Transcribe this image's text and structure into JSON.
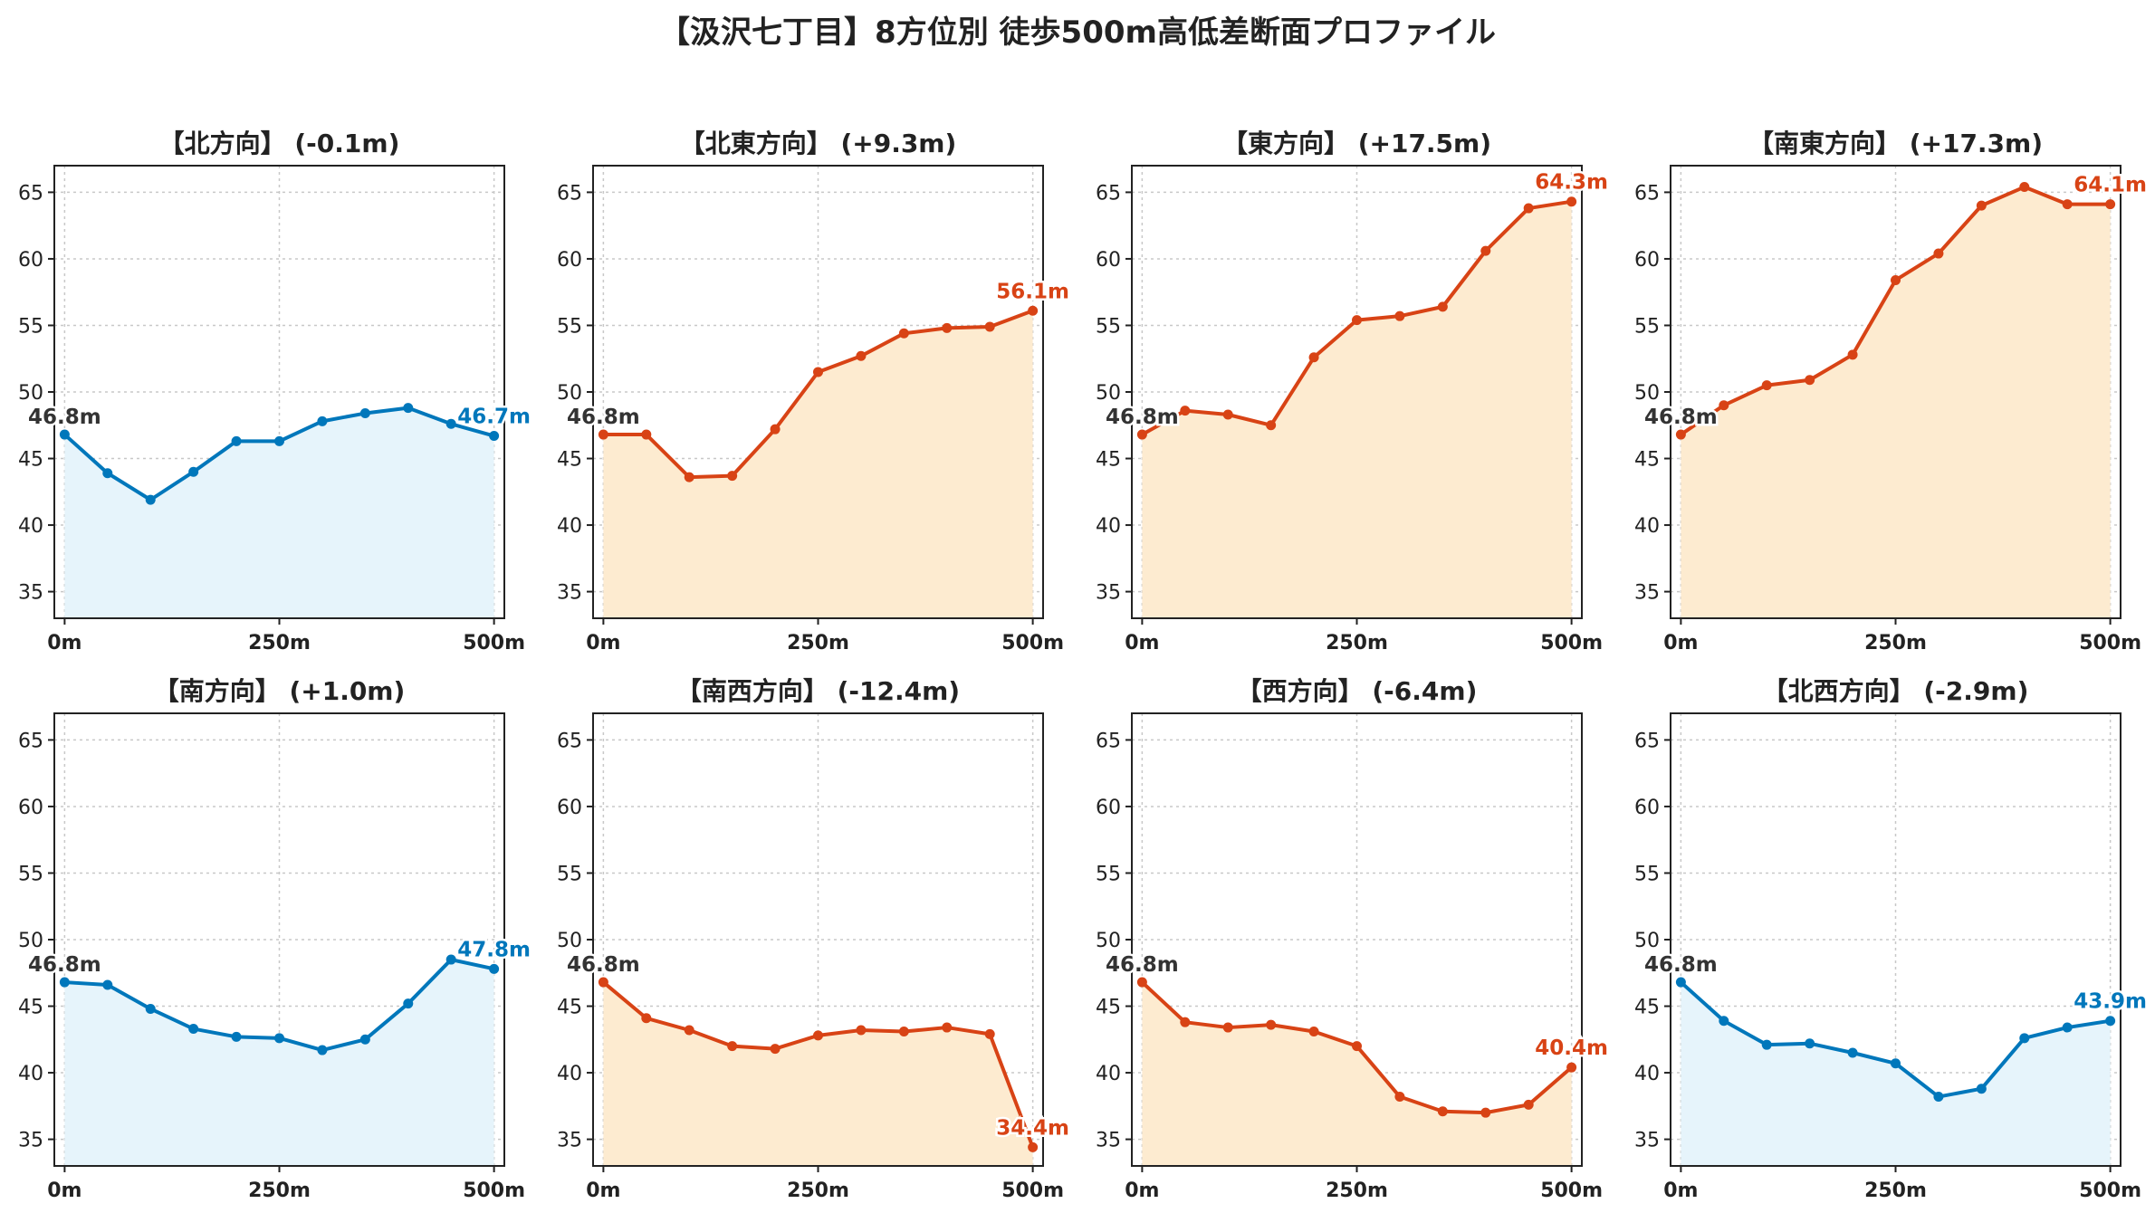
{
  "title": "【汲沢七丁目】8方位別 徒歩500m高低差断面プロファイル",
  "colors": {
    "up_line": "#d84315",
    "up_fill": "#fdebd0",
    "down_line": "#0077bb",
    "down_fill": "#e6f4fb",
    "start_label": "#333333"
  },
  "chart_data": [
    {
      "type": "area",
      "title": "【北方向】 (-0.1m)",
      "trend": "down",
      "x": [
        0,
        50,
        100,
        150,
        200,
        250,
        300,
        350,
        400,
        450,
        500
      ],
      "values": [
        46.8,
        43.9,
        41.9,
        44.0,
        46.3,
        46.3,
        47.8,
        48.4,
        48.8,
        47.6,
        46.7
      ],
      "start_label": "46.8m",
      "end_label": "46.7m",
      "xticks": [
        "0m",
        "250m",
        "500m"
      ],
      "yticks": [
        35,
        40,
        45,
        50,
        55,
        60,
        65
      ],
      "ylim": [
        33,
        67
      ],
      "xlim": [
        -12,
        512
      ],
      "grid": true
    },
    {
      "type": "area",
      "title": "【北東方向】 (+9.3m)",
      "trend": "up",
      "x": [
        0,
        50,
        100,
        150,
        200,
        250,
        300,
        350,
        400,
        450,
        500
      ],
      "values": [
        46.8,
        46.8,
        43.6,
        43.7,
        47.2,
        51.5,
        52.7,
        54.4,
        54.8,
        54.9,
        56.1
      ],
      "start_label": "46.8m",
      "end_label": "56.1m",
      "xticks": [
        "0m",
        "250m",
        "500m"
      ],
      "yticks": [
        35,
        40,
        45,
        50,
        55,
        60,
        65
      ],
      "ylim": [
        33,
        67
      ],
      "xlim": [
        -12,
        512
      ],
      "grid": true
    },
    {
      "type": "area",
      "title": "【東方向】 (+17.5m)",
      "trend": "up",
      "x": [
        0,
        50,
        100,
        150,
        200,
        250,
        300,
        350,
        400,
        450,
        500
      ],
      "values": [
        46.8,
        48.6,
        48.3,
        47.5,
        52.6,
        55.4,
        55.7,
        56.4,
        60.6,
        63.8,
        64.3
      ],
      "start_label": "46.8m",
      "end_label": "64.3m",
      "xticks": [
        "0m",
        "250m",
        "500m"
      ],
      "yticks": [
        35,
        40,
        45,
        50,
        55,
        60,
        65
      ],
      "ylim": [
        33,
        67
      ],
      "xlim": [
        -12,
        512
      ],
      "grid": true
    },
    {
      "type": "area",
      "title": "【南東方向】 (+17.3m)",
      "trend": "up",
      "x": [
        0,
        50,
        100,
        150,
        200,
        250,
        300,
        350,
        400,
        450,
        500
      ],
      "values": [
        46.8,
        49.0,
        50.5,
        50.9,
        52.8,
        58.4,
        60.4,
        64.0,
        65.4,
        64.1,
        64.1
      ],
      "start_label": "46.8m",
      "end_label": "64.1m",
      "xticks": [
        "0m",
        "250m",
        "500m"
      ],
      "yticks": [
        35,
        40,
        45,
        50,
        55,
        60,
        65
      ],
      "ylim": [
        33,
        67
      ],
      "xlim": [
        -12,
        512
      ],
      "grid": true
    },
    {
      "type": "area",
      "title": "【南方向】 (+1.0m)",
      "trend": "down",
      "x": [
        0,
        50,
        100,
        150,
        200,
        250,
        300,
        350,
        400,
        450,
        500
      ],
      "values": [
        46.8,
        46.6,
        44.8,
        43.3,
        42.7,
        42.6,
        41.7,
        42.5,
        45.2,
        48.5,
        47.8
      ],
      "start_label": "46.8m",
      "end_label": "47.8m",
      "xticks": [
        "0m",
        "250m",
        "500m"
      ],
      "yticks": [
        35,
        40,
        45,
        50,
        55,
        60,
        65
      ],
      "ylim": [
        33,
        67
      ],
      "xlim": [
        -12,
        512
      ],
      "grid": true
    },
    {
      "type": "area",
      "title": "【南西方向】 (-12.4m)",
      "trend": "up",
      "x": [
        0,
        50,
        100,
        150,
        200,
        250,
        300,
        350,
        400,
        450,
        500
      ],
      "values": [
        46.8,
        44.1,
        43.2,
        42.0,
        41.8,
        42.8,
        43.2,
        43.1,
        43.4,
        42.9,
        34.4
      ],
      "start_label": "46.8m",
      "end_label": "34.4m",
      "xticks": [
        "0m",
        "250m",
        "500m"
      ],
      "yticks": [
        35,
        40,
        45,
        50,
        55,
        60,
        65
      ],
      "ylim": [
        33,
        67
      ],
      "xlim": [
        -12,
        512
      ],
      "grid": true
    },
    {
      "type": "area",
      "title": "【西方向】 (-6.4m)",
      "trend": "up",
      "x": [
        0,
        50,
        100,
        150,
        200,
        250,
        300,
        350,
        400,
        450,
        500
      ],
      "values": [
        46.8,
        43.8,
        43.4,
        43.6,
        43.1,
        42.0,
        38.2,
        37.1,
        37.0,
        37.6,
        40.4
      ],
      "start_label": "46.8m",
      "end_label": "40.4m",
      "xticks": [
        "0m",
        "250m",
        "500m"
      ],
      "yticks": [
        35,
        40,
        45,
        50,
        55,
        60,
        65
      ],
      "ylim": [
        33,
        67
      ],
      "xlim": [
        -12,
        512
      ],
      "grid": true
    },
    {
      "type": "area",
      "title": "【北西方向】 (-2.9m)",
      "trend": "down",
      "x": [
        0,
        50,
        100,
        150,
        200,
        250,
        300,
        350,
        400,
        450,
        500
      ],
      "values": [
        46.8,
        43.9,
        42.1,
        42.2,
        41.5,
        40.7,
        38.2,
        38.8,
        42.6,
        43.4,
        43.9
      ],
      "start_label": "46.8m",
      "end_label": "43.9m",
      "xticks": [
        "0m",
        "250m",
        "500m"
      ],
      "yticks": [
        35,
        40,
        45,
        50,
        55,
        60,
        65
      ],
      "ylim": [
        33,
        67
      ],
      "xlim": [
        -12,
        512
      ],
      "grid": true
    }
  ]
}
